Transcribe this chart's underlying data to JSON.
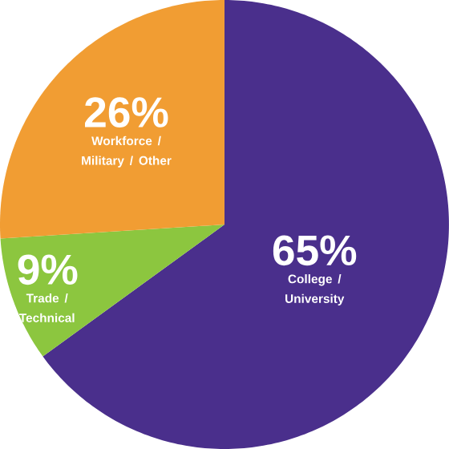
{
  "chart_data": {
    "type": "pie",
    "categories": [
      "College / University",
      "Trade / Technical",
      "Workforce / Military / Other"
    ],
    "values": [
      65,
      9,
      26
    ],
    "value_labels": [
      "65%",
      "9%",
      "26%"
    ],
    "colors": [
      "#4a2f8c",
      "#8cc63f",
      "#f19d33"
    ]
  }
}
